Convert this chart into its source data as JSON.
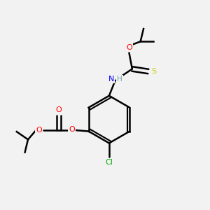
{
  "background_color": "#f2f2f2",
  "atom_colors": {
    "C": "#000000",
    "H": "#70a0a0",
    "N": "#0000ff",
    "O": "#ff0000",
    "S": "#cccc00",
    "Cl": "#00aa00"
  },
  "bond_color": "#000000",
  "bond_width": 1.8,
  "fig_width": 3.0,
  "fig_height": 3.0,
  "dpi": 100
}
